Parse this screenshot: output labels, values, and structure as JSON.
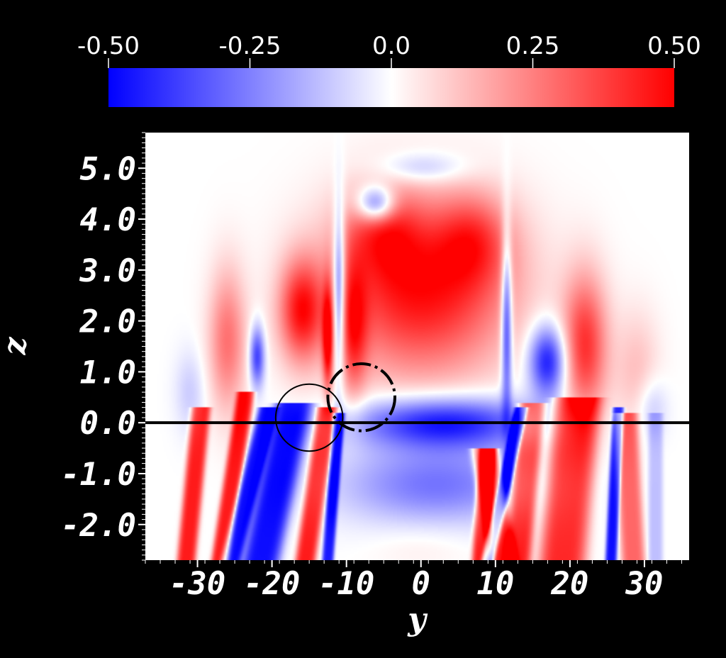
{
  "chart_data": {
    "type": "heatmap",
    "title": "",
    "xlabel": "y",
    "ylabel": "z",
    "xlim": [
      -37,
      36
    ],
    "ylim": [
      -2.7,
      5.7
    ],
    "x_ticks": [
      "-30",
      "-20",
      "-10",
      "0",
      "10",
      "20",
      "30"
    ],
    "x_tick_values": [
      -30,
      -20,
      -10,
      0,
      10,
      20,
      30
    ],
    "y_ticks": [
      "5.0",
      "4.0",
      "3.0",
      "2.0",
      "1.0",
      "0.0",
      "-1.0",
      "-2.0"
    ],
    "y_tick_values": [
      5,
      4,
      3,
      2,
      1,
      0,
      -1,
      -2
    ],
    "colorbar": {
      "min": -0.5,
      "max": 0.5,
      "ticks": [
        "-0.50",
        "-0.25",
        "0.0",
        "0.25",
        "0.50"
      ],
      "tick_values": [
        -0.5,
        -0.25,
        0,
        0.25,
        0.5
      ],
      "colors": {
        "low": "#0000ff",
        "mid": "#ffffff",
        "high": "#ff0000"
      }
    },
    "annotations": {
      "horizontal_line": {
        "z": 0.0,
        "color": "#000000"
      },
      "solid_circle": {
        "y": -15.0,
        "z": 0.1,
        "radius": 4.5
      },
      "dashed_circle": {
        "y": -8.0,
        "z": 0.5,
        "radius": 4.5
      }
    },
    "field_features": [
      {
        "type": "gaussian",
        "y": 0.0,
        "z": 2.6,
        "sy": 12.0,
        "sz": 1.7,
        "value": 0.95
      },
      {
        "type": "gaussian",
        "y": -5.0,
        "z": 3.8,
        "sy": 5.0,
        "sz": 0.9,
        "value": 0.5
      },
      {
        "type": "gaussian",
        "y": 7.0,
        "z": 3.6,
        "sy": 5.0,
        "sz": 0.9,
        "value": 0.5
      },
      {
        "type": "gaussian",
        "y": 3.0,
        "z": 0.0,
        "sy": 12.0,
        "sz": 0.5,
        "value": -0.95
      },
      {
        "type": "gaussian",
        "y": 2.0,
        "z": -1.2,
        "sy": 13.0,
        "sz": 0.8,
        "value": -0.55
      },
      {
        "type": "gaussian",
        "y": 0.0,
        "z": -2.4,
        "sy": 7.0,
        "sz": 0.5,
        "value": 0.08
      },
      {
        "type": "gaussian",
        "y": -6.0,
        "z": 4.3,
        "sy": 2.5,
        "sz": 0.35,
        "value": -0.9
      },
      {
        "type": "gaussian",
        "y": 0.0,
        "z": 5.0,
        "sy": 6.0,
        "sz": 0.3,
        "value": -0.3
      },
      {
        "type": "gaussian",
        "y": -11.0,
        "z": 2.6,
        "sy": 0.8,
        "sz": 1.6,
        "value": -0.9
      },
      {
        "type": "gaussian",
        "y": 11.5,
        "z": 2.0,
        "sy": 0.7,
        "sz": 1.8,
        "value": -0.9
      },
      {
        "type": "gaussian",
        "y": 17.0,
        "z": 1.2,
        "sy": 2.5,
        "sz": 0.7,
        "value": -0.95
      },
      {
        "type": "gaussian",
        "y": -22.0,
        "z": 1.3,
        "sy": 1.0,
        "sz": 0.6,
        "value": -0.8
      },
      {
        "type": "gaussian",
        "y": -16.0,
        "z": 2.2,
        "sy": 3.0,
        "sz": 1.0,
        "value": 0.85
      },
      {
        "type": "gaussian",
        "y": -26.0,
        "z": 1.6,
        "sy": 2.5,
        "sz": 1.4,
        "value": 0.55
      },
      {
        "type": "gaussian",
        "y": 22.0,
        "z": 1.5,
        "sy": 3.0,
        "sz": 1.4,
        "value": 0.8
      },
      {
        "type": "gaussian",
        "y": 29.0,
        "z": 1.0,
        "sy": 3.0,
        "sz": 1.2,
        "value": 0.25
      },
      {
        "type": "gaussian",
        "y": -31.0,
        "z": 0.6,
        "sy": 2.0,
        "sz": 0.8,
        "value": -0.2
      },
      {
        "type": "gaussian",
        "y": 31.0,
        "z": 0.3,
        "sy": 2.0,
        "sz": 0.6,
        "value": -0.25
      },
      {
        "type": "gaussian",
        "y": -9.0,
        "z": 1.8,
        "sy": 1.8,
        "sz": 1.3,
        "value": 0.6
      },
      {
        "type": "gaussian",
        "y": -12.5,
        "z": 1.6,
        "sy": 0.7,
        "sz": 1.0,
        "value": 0.9
      },
      {
        "type": "stripe",
        "y_top": -20.5,
        "y_bottom": -25.5,
        "z_top": 0.3,
        "z_bottom": -2.7,
        "width": 1.3,
        "value": -0.95
      },
      {
        "type": "stripe",
        "y_top": -17.0,
        "y_bottom": -21.5,
        "z_top": 0.4,
        "z_bottom": -2.7,
        "width": 2.6,
        "value": -0.95
      },
      {
        "type": "stripe",
        "y_top": -23.5,
        "y_bottom": -27.0,
        "z_top": 0.6,
        "z_bottom": -2.7,
        "width": 1.2,
        "value": 0.9
      },
      {
        "type": "stripe",
        "y_top": -12.5,
        "y_bottom": -15.5,
        "z_top": 0.3,
        "z_bottom": -2.7,
        "width": 1.4,
        "value": 0.9
      },
      {
        "type": "stripe",
        "y_top": -11.0,
        "y_bottom": -12.5,
        "z_top": 0.2,
        "z_bottom": -2.7,
        "width": 0.8,
        "value": -0.9
      },
      {
        "type": "stripe",
        "y_top": -29.5,
        "y_bottom": -31.5,
        "z_top": 0.3,
        "z_bottom": -2.7,
        "width": 1.3,
        "value": 0.9
      },
      {
        "type": "stripe",
        "y_top": 13.5,
        "y_bottom": 9.0,
        "z_top": 0.3,
        "z_bottom": -2.7,
        "width": 0.9,
        "value": -0.95
      },
      {
        "type": "stripe",
        "y_top": 9.0,
        "y_bottom": 8.0,
        "z_top": -0.5,
        "z_bottom": -2.7,
        "width": 1.2,
        "value": 0.9
      },
      {
        "type": "stripe",
        "y_top": 15.0,
        "y_bottom": 13.0,
        "z_top": 0.4,
        "z_bottom": -2.7,
        "width": 1.8,
        "value": 0.9
      },
      {
        "type": "stripe",
        "y_top": 21.0,
        "y_bottom": 19.0,
        "z_top": 0.5,
        "z_bottom": -2.7,
        "width": 3.2,
        "value": 0.85
      },
      {
        "type": "stripe",
        "y_top": 26.5,
        "y_bottom": 25.5,
        "z_top": 0.3,
        "z_bottom": -2.7,
        "width": 0.8,
        "value": -0.95
      },
      {
        "type": "stripe",
        "y_top": 27.5,
        "y_bottom": 28.5,
        "z_top": 0.2,
        "z_bottom": -2.7,
        "width": 1.6,
        "value": 0.6
      },
      {
        "type": "stripe",
        "y_top": 31.5,
        "y_bottom": 31.5,
        "z_top": 0.2,
        "z_bottom": -2.7,
        "width": 1.0,
        "value": -0.25
      },
      {
        "type": "stripe",
        "y_top": 8.5,
        "y_bottom": 11.0,
        "z_top": -0.5,
        "z_bottom": -2.7,
        "width": 1.8,
        "value": 0.9
      }
    ]
  }
}
